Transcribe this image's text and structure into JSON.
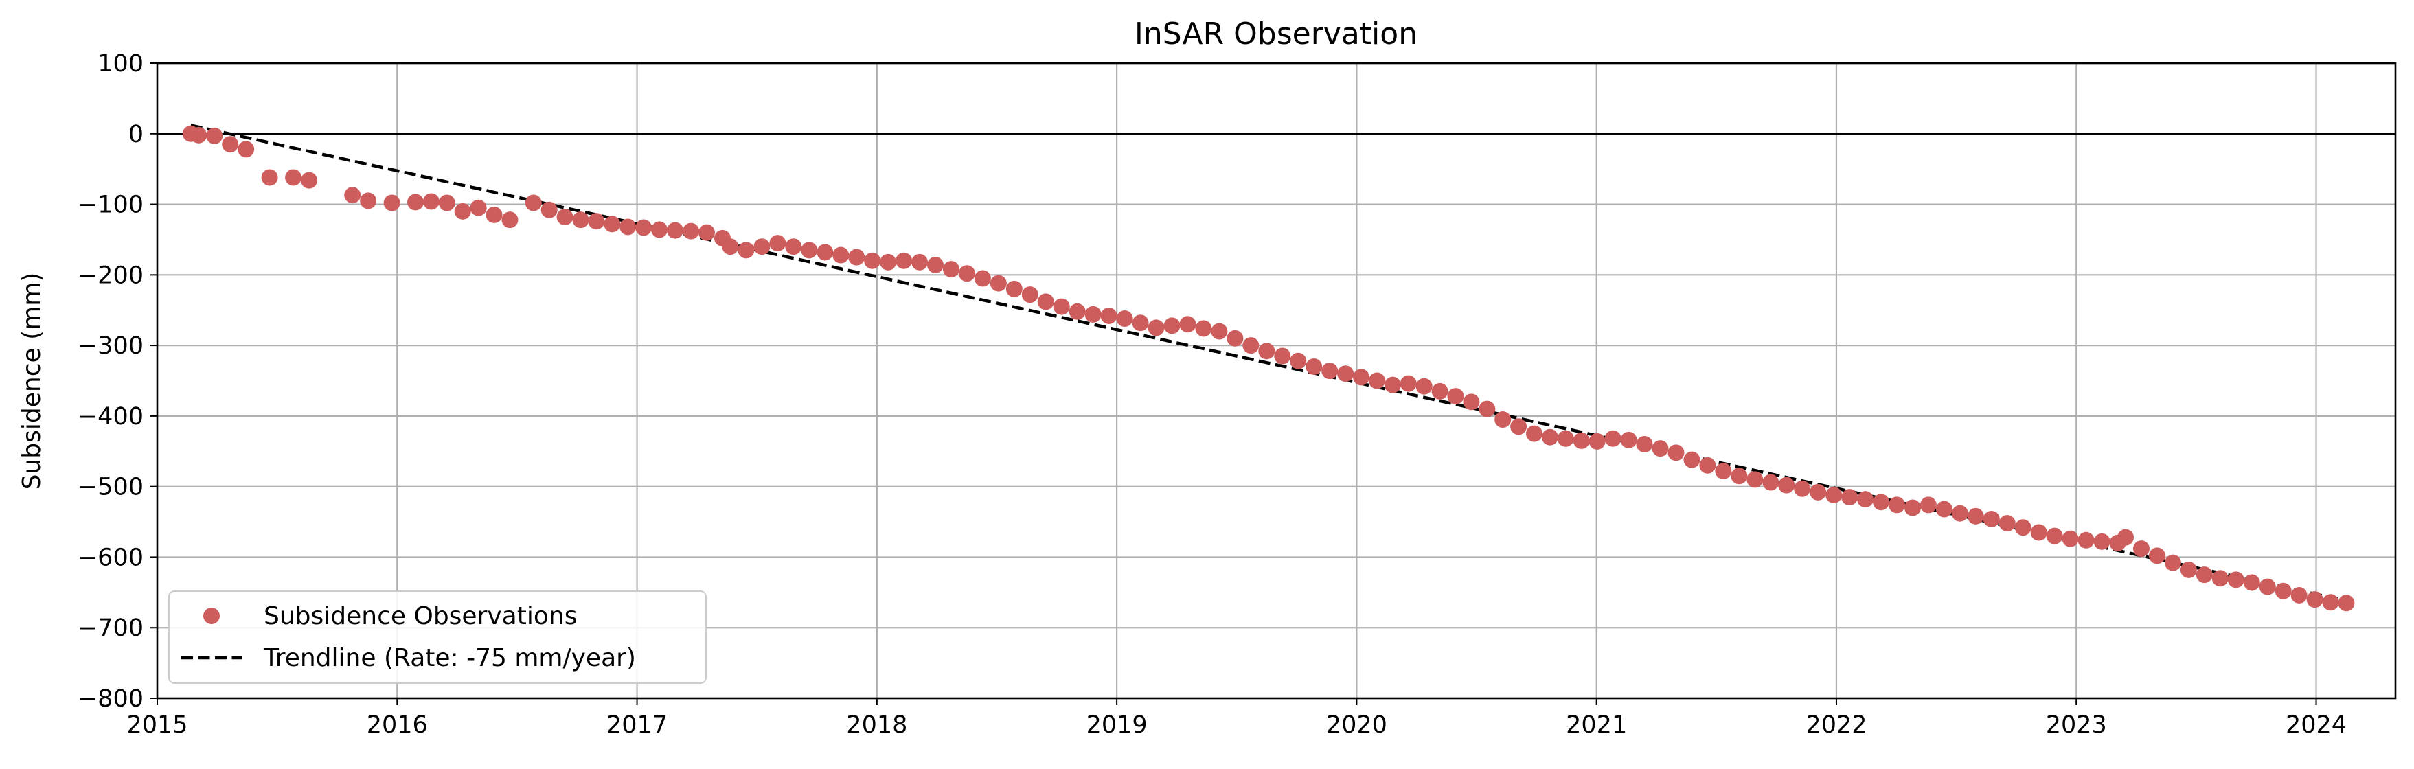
{
  "chart_data": {
    "type": "scatter",
    "title": "InSAR Observation",
    "xlabel": "",
    "ylabel": "Subsidence (mm)",
    "xlim": [
      "2015-01-01",
      "2024-05-01"
    ],
    "ylim": [
      -800,
      100
    ],
    "x_tick_labels": [
      "2015",
      "2016",
      "2017",
      "2018",
      "2019",
      "2020",
      "2021",
      "2022",
      "2023",
      "2024"
    ],
    "y_tick_values": [
      100,
      0,
      -100,
      -200,
      -300,
      -400,
      -500,
      -600,
      -700,
      -800
    ],
    "y_tick_labels": [
      "100",
      "0",
      "−100",
      "−200",
      "−300",
      "−400",
      "−500",
      "−600",
      "−700",
      "−800"
    ],
    "grid": true,
    "zero_line": 0,
    "legend_position": "lower-left",
    "colors": {
      "observations": "#cd5c5c",
      "trendline": "#000000",
      "grid": "#b0b0b0"
    },
    "series": [
      {
        "name": "Subsidence Observations",
        "kind": "scatter",
        "points": [
          {
            "x": "2015-02-21",
            "y": 0
          },
          {
            "x": "2015-03-05",
            "y": -2
          },
          {
            "x": "2015-03-29",
            "y": -3
          },
          {
            "x": "2015-04-22",
            "y": -15
          },
          {
            "x": "2015-05-16",
            "y": -22
          },
          {
            "x": "2015-06-21",
            "y": -62
          },
          {
            "x": "2015-07-27",
            "y": -62
          },
          {
            "x": "2015-08-20",
            "y": -66
          },
          {
            "x": "2015-10-25",
            "y": -87
          },
          {
            "x": "2015-11-18",
            "y": -95
          },
          {
            "x": "2015-12-24",
            "y": -98
          },
          {
            "x": "2016-01-29",
            "y": -97
          },
          {
            "x": "2016-02-22",
            "y": -96
          },
          {
            "x": "2016-03-17",
            "y": -98
          },
          {
            "x": "2016-04-10",
            "y": -110
          },
          {
            "x": "2016-05-04",
            "y": -105
          },
          {
            "x": "2016-05-28",
            "y": -115
          },
          {
            "x": "2016-06-21",
            "y": -122
          },
          {
            "x": "2016-07-27",
            "y": -98
          },
          {
            "x": "2016-08-20",
            "y": -108
          },
          {
            "x": "2016-09-13",
            "y": -118
          },
          {
            "x": "2016-10-07",
            "y": -122
          },
          {
            "x": "2016-10-31",
            "y": -124
          },
          {
            "x": "2016-11-24",
            "y": -128
          },
          {
            "x": "2016-12-18",
            "y": -132
          },
          {
            "x": "2017-01-11",
            "y": -133
          },
          {
            "x": "2017-02-04",
            "y": -136
          },
          {
            "x": "2017-02-28",
            "y": -137
          },
          {
            "x": "2017-03-24",
            "y": -138
          },
          {
            "x": "2017-04-17",
            "y": -140
          },
          {
            "x": "2017-05-11",
            "y": -148
          },
          {
            "x": "2017-05-23",
            "y": -160
          },
          {
            "x": "2017-06-16",
            "y": -165
          },
          {
            "x": "2017-07-10",
            "y": -160
          },
          {
            "x": "2017-08-03",
            "y": -155
          },
          {
            "x": "2017-08-27",
            "y": -160
          },
          {
            "x": "2017-09-20",
            "y": -165
          },
          {
            "x": "2017-10-14",
            "y": -168
          },
          {
            "x": "2017-11-07",
            "y": -172
          },
          {
            "x": "2017-12-01",
            "y": -175
          },
          {
            "x": "2017-12-25",
            "y": -180
          },
          {
            "x": "2018-01-18",
            "y": -182
          },
          {
            "x": "2018-02-11",
            "y": -180
          },
          {
            "x": "2018-03-07",
            "y": -182
          },
          {
            "x": "2018-03-31",
            "y": -186
          },
          {
            "x": "2018-04-24",
            "y": -192
          },
          {
            "x": "2018-05-18",
            "y": -198
          },
          {
            "x": "2018-06-11",
            "y": -205
          },
          {
            "x": "2018-07-05",
            "y": -212
          },
          {
            "x": "2018-07-29",
            "y": -220
          },
          {
            "x": "2018-08-22",
            "y": -228
          },
          {
            "x": "2018-09-15",
            "y": -238
          },
          {
            "x": "2018-10-09",
            "y": -245
          },
          {
            "x": "2018-11-02",
            "y": -252
          },
          {
            "x": "2018-11-26",
            "y": -256
          },
          {
            "x": "2018-12-20",
            "y": -258
          },
          {
            "x": "2019-01-13",
            "y": -262
          },
          {
            "x": "2019-02-06",
            "y": -268
          },
          {
            "x": "2019-03-02",
            "y": -275
          },
          {
            "x": "2019-03-26",
            "y": -272
          },
          {
            "x": "2019-04-19",
            "y": -270
          },
          {
            "x": "2019-05-13",
            "y": -276
          },
          {
            "x": "2019-06-06",
            "y": -280
          },
          {
            "x": "2019-06-30",
            "y": -290
          },
          {
            "x": "2019-07-24",
            "y": -300
          },
          {
            "x": "2019-08-17",
            "y": -308
          },
          {
            "x": "2019-09-10",
            "y": -315
          },
          {
            "x": "2019-10-04",
            "y": -322
          },
          {
            "x": "2019-10-28",
            "y": -330
          },
          {
            "x": "2019-11-21",
            "y": -336
          },
          {
            "x": "2019-12-15",
            "y": -340
          },
          {
            "x": "2020-01-08",
            "y": -345
          },
          {
            "x": "2020-02-01",
            "y": -350
          },
          {
            "x": "2020-02-25",
            "y": -356
          },
          {
            "x": "2020-03-20",
            "y": -354
          },
          {
            "x": "2020-04-13",
            "y": -358
          },
          {
            "x": "2020-05-07",
            "y": -365
          },
          {
            "x": "2020-05-31",
            "y": -372
          },
          {
            "x": "2020-06-24",
            "y": -380
          },
          {
            "x": "2020-07-18",
            "y": -390
          },
          {
            "x": "2020-08-11",
            "y": -405
          },
          {
            "x": "2020-09-04",
            "y": -415
          },
          {
            "x": "2020-09-28",
            "y": -425
          },
          {
            "x": "2020-10-22",
            "y": -430
          },
          {
            "x": "2020-11-15",
            "y": -432
          },
          {
            "x": "2020-12-09",
            "y": -435
          },
          {
            "x": "2021-01-02",
            "y": -436
          },
          {
            "x": "2021-01-26",
            "y": -432
          },
          {
            "x": "2021-02-19",
            "y": -434
          },
          {
            "x": "2021-03-15",
            "y": -440
          },
          {
            "x": "2021-04-08",
            "y": -446
          },
          {
            "x": "2021-05-02",
            "y": -452
          },
          {
            "x": "2021-05-26",
            "y": -462
          },
          {
            "x": "2021-06-19",
            "y": -470
          },
          {
            "x": "2021-07-13",
            "y": -478
          },
          {
            "x": "2021-08-06",
            "y": -485
          },
          {
            "x": "2021-08-30",
            "y": -490
          },
          {
            "x": "2021-09-23",
            "y": -494
          },
          {
            "x": "2021-10-17",
            "y": -498
          },
          {
            "x": "2021-11-10",
            "y": -503
          },
          {
            "x": "2021-12-04",
            "y": -508
          },
          {
            "x": "2021-12-28",
            "y": -512
          },
          {
            "x": "2022-01-21",
            "y": -515
          },
          {
            "x": "2022-02-14",
            "y": -518
          },
          {
            "x": "2022-03-10",
            "y": -522
          },
          {
            "x": "2022-04-03",
            "y": -526
          },
          {
            "x": "2022-04-27",
            "y": -530
          },
          {
            "x": "2022-05-21",
            "y": -526
          },
          {
            "x": "2022-06-14",
            "y": -532
          },
          {
            "x": "2022-07-08",
            "y": -538
          },
          {
            "x": "2022-08-01",
            "y": -542
          },
          {
            "x": "2022-08-25",
            "y": -546
          },
          {
            "x": "2022-09-18",
            "y": -552
          },
          {
            "x": "2022-10-12",
            "y": -558
          },
          {
            "x": "2022-11-05",
            "y": -565
          },
          {
            "x": "2022-11-29",
            "y": -570
          },
          {
            "x": "2022-12-23",
            "y": -574
          },
          {
            "x": "2023-01-16",
            "y": -576
          },
          {
            "x": "2023-02-09",
            "y": -578
          },
          {
            "x": "2023-03-05",
            "y": -580
          },
          {
            "x": "2023-03-17",
            "y": -572
          },
          {
            "x": "2023-04-10",
            "y": -588
          },
          {
            "x": "2023-05-04",
            "y": -598
          },
          {
            "x": "2023-05-28",
            "y": -608
          },
          {
            "x": "2023-06-21",
            "y": -618
          },
          {
            "x": "2023-07-15",
            "y": -625
          },
          {
            "x": "2023-08-08",
            "y": -630
          },
          {
            "x": "2023-09-01",
            "y": -632
          },
          {
            "x": "2023-09-25",
            "y": -636
          },
          {
            "x": "2023-10-19",
            "y": -642
          },
          {
            "x": "2023-11-12",
            "y": -648
          },
          {
            "x": "2023-12-06",
            "y": -654
          },
          {
            "x": "2023-12-30",
            "y": -660
          },
          {
            "x": "2024-01-23",
            "y": -664
          },
          {
            "x": "2024-02-16",
            "y": -665
          }
        ]
      },
      {
        "name": "Trendline (Rate: -75 mm/year)",
        "kind": "line",
        "style": "dashed",
        "points": [
          {
            "x": "2015-02-21",
            "y": 12
          },
          {
            "x": "2024-02-16",
            "y": -662
          }
        ]
      }
    ]
  }
}
